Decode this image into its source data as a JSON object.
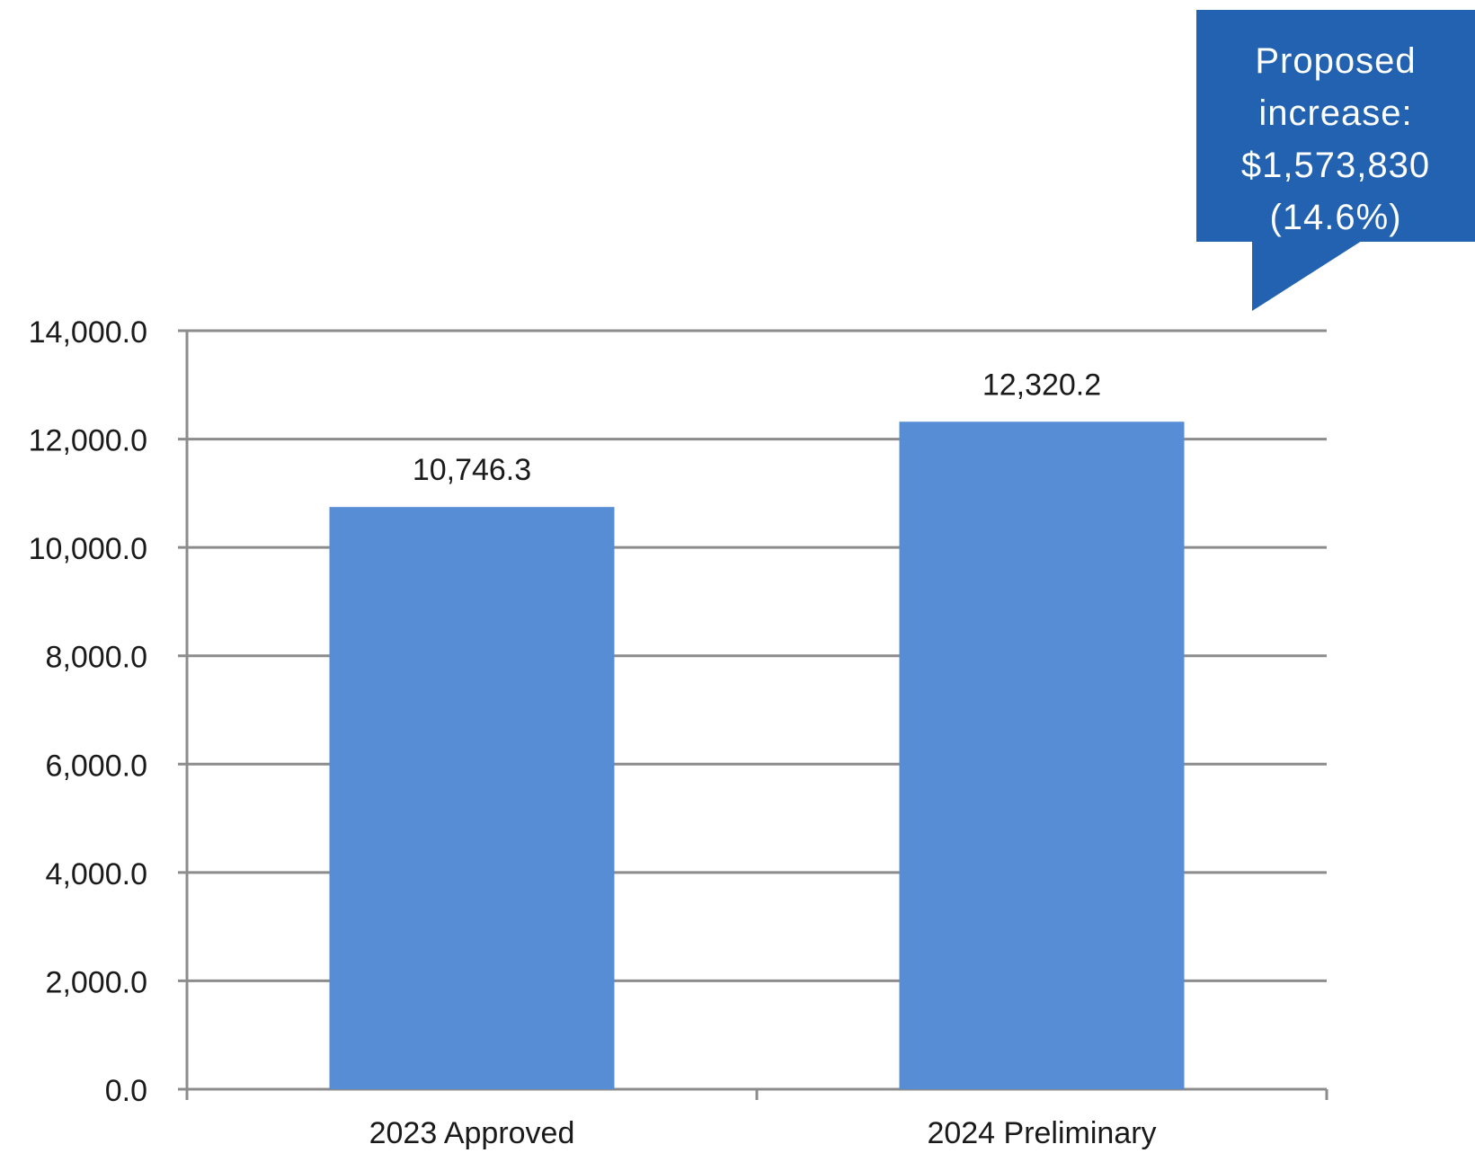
{
  "chart_data": {
    "type": "bar",
    "categories": [
      "2023 Approved",
      "2024 Preliminary"
    ],
    "values": [
      10746.3,
      12320.2
    ],
    "value_labels": [
      "10,746.3",
      "12,320.2"
    ],
    "yticks": [
      0,
      2000,
      4000,
      6000,
      8000,
      10000,
      12000,
      14000
    ],
    "ytick_labels": [
      "0.0",
      "2,000.0",
      "4,000.0",
      "6,000.0",
      "8,000.0",
      "10,000.0",
      "12,000.0",
      "14,000.0"
    ],
    "ylim": [
      0,
      14000
    ],
    "grid": true,
    "bar_color": "#568dd4",
    "callout": {
      "line1": "Proposed",
      "line2": "increase:",
      "line3": "$1,573,830",
      "line4": "(14.6%)",
      "color": "#2262b0"
    }
  }
}
